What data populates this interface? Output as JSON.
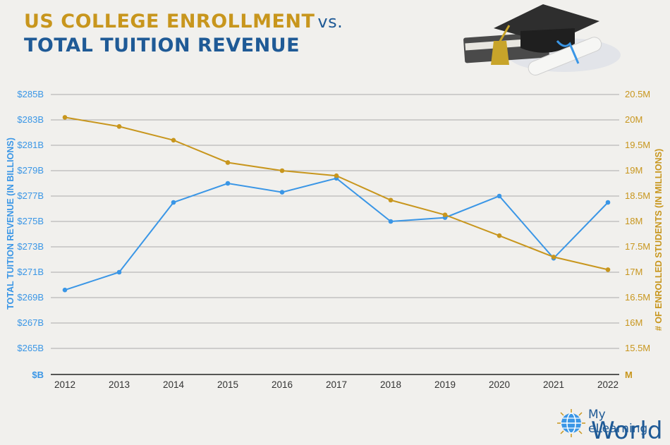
{
  "header": {
    "title_line1": "US COLLEGE ENROLLMENT",
    "title_vs": "vs.",
    "title_line2": "TOTAL TUITION REVENUE"
  },
  "colors": {
    "revenue": "#3a96e6",
    "enrollment": "#c8961d",
    "title_blue": "#1f5a96",
    "grid": "#aaaaaa"
  },
  "chart_data": {
    "type": "line",
    "title": "US COLLEGE ENROLLMENT vs. TOTAL TUITION REVENUE",
    "x": [
      "2012",
      "2013",
      "2014",
      "2015",
      "2016",
      "2017",
      "2018",
      "2019",
      "2020",
      "2021",
      "2022"
    ],
    "series": [
      {
        "name": "Total Tuition Revenue",
        "axis": "left",
        "values": [
          269.6,
          271.0,
          276.5,
          278.0,
          277.3,
          278.4,
          275.0,
          275.3,
          277.0,
          272.1,
          276.5
        ]
      },
      {
        "name": "# of Enrolled Students",
        "axis": "right",
        "values": [
          20.05,
          19.87,
          19.6,
          19.16,
          19.0,
          18.9,
          18.42,
          18.13,
          17.72,
          17.3,
          17.05
        ]
      }
    ],
    "left_axis": {
      "label": "TOTAL TUITION REVENUE (IN BILLIONS)",
      "ylim": [
        263,
        285
      ],
      "ticks": [
        265,
        267,
        269,
        271,
        273,
        275,
        277,
        279,
        281,
        283,
        285
      ],
      "tick_labels": [
        "$265B",
        "$267B",
        "$269B",
        "$271B",
        "$273B",
        "$275B",
        "$277B",
        "$279B",
        "$281B",
        "$283B",
        "$285B"
      ],
      "zero_label": "$B"
    },
    "right_axis": {
      "label": "# OF ENROLLED STUDENTS (IN MILLIONS)",
      "ylim": [
        15,
        20.5
      ],
      "ticks": [
        15.5,
        16,
        16.5,
        17,
        17.5,
        18,
        18.5,
        19,
        19.5,
        20,
        20.5
      ],
      "tick_labels": [
        "15.5M",
        "16M",
        "16.5M",
        "17M",
        "17.5M",
        "18M",
        "18.5M",
        "19M",
        "19.5M",
        "20M",
        "20.5M"
      ],
      "zero_label": "M"
    },
    "grid": true
  },
  "logo": {
    "line1": "My eLearning",
    "line2": "World"
  }
}
